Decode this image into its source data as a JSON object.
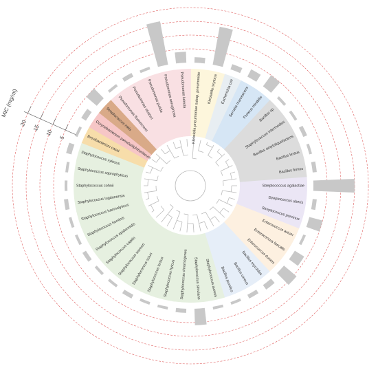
{
  "chart_data": {
    "type": "radial_bar",
    "axis_label": "MIC (mg/ml)",
    "categories": [
      "Klebsiella pneumoniae subsp. pneumoniae",
      "Klebsiella oxytoca",
      "Escherichia coli",
      "Serratia marcescens",
      "Proteus mirabilis",
      "Bacillus sp.",
      "Staphylococcus intermedius",
      "Bacillus amyloliquefaciens",
      "Bacillus lentus",
      "Bacillus firmus",
      "Streptococcus agalactiae",
      "Streptococcus uberis",
      "Streptococcus porcinus",
      "Enterococcus avium",
      "Enterococcus faecalis",
      "Enterococcus durans",
      "Bacillus mycoides",
      "Bacillus cereus",
      "Bacillus pumilus",
      "Staphylococcus aureus",
      "Staphylococcus simulans",
      "Staphylococcus chromogenes",
      "Staphylococcus hyicus",
      "Staphylococcus lentus",
      "Staphylococcus sciuri",
      "Staphylococcus warneri",
      "Staphylococcus capitis",
      "Staphylococcus epidermidis",
      "Staphylococcus hominis",
      "Staphylococcus haemolyticus",
      "Staphylococcus lugdunensis",
      "Staphylococcus cohnii",
      "Staphylococcus saprophyticus",
      "Staphylococcus xylosus",
      "Brevibacterium casei",
      "Corynebacterium pseudodiphtheriticum",
      "Streptococcus mitis",
      "Pseudomonas fluorescens",
      "Pseudomonas stutzeri",
      "Pseudomonas putida",
      "Pseudomonas aeruginosa",
      "Pseudomonas luteola"
    ],
    "values": [
      2,
      14,
      2,
      3,
      5,
      1,
      1,
      1.5,
      1,
      1.5,
      15,
      1.5,
      5,
      1,
      4,
      6,
      2,
      1.5,
      1,
      1,
      6,
      1.5,
      1,
      1,
      1.5,
      1,
      1,
      1.5,
      1,
      1,
      1.5,
      1,
      1,
      2,
      1,
      2,
      5,
      1,
      1.5,
      1,
      16,
      4
    ],
    "colors": [
      "#fdf6dc",
      "#fdf6dc",
      "#e8eef2",
      "#d6e6f5",
      "#d6e6f5",
      "#dcdcdc",
      "#dcdcdc",
      "#dcdcdc",
      "#dcdcdc",
      "#dcdcdc",
      "#ebe6f5",
      "#ebe6f5",
      "#ebe6f5",
      "#fdf0e0",
      "#fdf0e0",
      "#fdf0e0",
      "#e6eef8",
      "#e6eef8",
      "#e6eef8",
      "#e6f0e0",
      "#e6f0e0",
      "#e6f0e0",
      "#e6f0e0",
      "#e6f0e0",
      "#e6f0e0",
      "#e6f0e0",
      "#e6f0e0",
      "#e6f0e0",
      "#e6f0e0",
      "#e6f0e0",
      "#e6f0e0",
      "#e6f0e0",
      "#e6f0e0",
      "#e6f0e0",
      "#f7ddaa",
      "#f6c6c6",
      "#d9aa88",
      "#f9e0e3",
      "#f9e0e3",
      "#f9e0e3",
      "#f9e0e3",
      "#f9e0e3"
    ],
    "bar_color": "#c8c8c8",
    "rlim": [
      0,
      20
    ],
    "rticks": [
      5,
      10,
      15,
      20
    ],
    "grid": true
  }
}
